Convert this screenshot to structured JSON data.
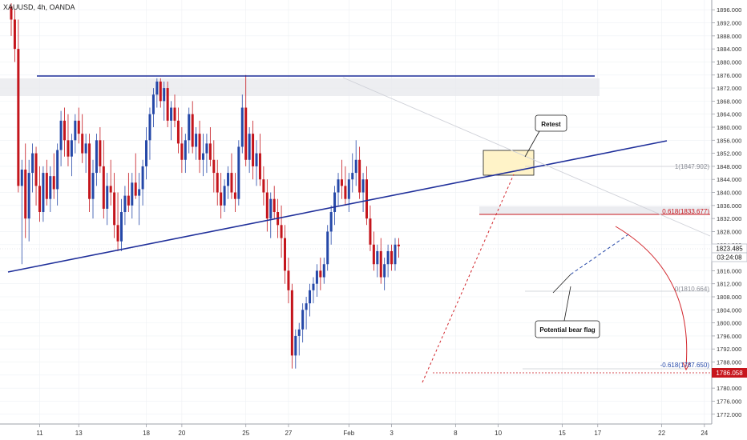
{
  "header": {
    "title": "XAUUSD, 4h, OANDA"
  },
  "colors": {
    "up": "#2548a8",
    "down": "#c4151c",
    "trend": "#1f2f9a",
    "grid": "#eef0f4"
  },
  "annotations": {
    "retest": "Retest",
    "bear_flag": "Potential bear flag",
    "fib_1": "1(1847.902)",
    "fib_0618": "0.618(1833.677)",
    "fib_0": "0(1810.664)",
    "fib_m0618": "-0.618(1787.650)"
  },
  "price_badges": {
    "last": "1823.485",
    "countdown": "03:24:08",
    "target": "1786.058"
  },
  "chart_data": {
    "type": "candlestick",
    "symbol": "XAUUSD",
    "timeframe": "4h",
    "source": "OANDA",
    "ylim": [
      1769,
      1899
    ],
    "y_ticks": [
      "1896.000",
      "1892.000",
      "1888.000",
      "1884.000",
      "1880.000",
      "1876.000",
      "1872.000",
      "1868.000",
      "1864.000",
      "1860.000",
      "1856.000",
      "1852.000",
      "1848.000",
      "1844.000",
      "1840.000",
      "1836.000",
      "1832.000",
      "1828.000",
      "1824.000",
      "1820.000",
      "1816.000",
      "1812.000",
      "1808.000",
      "1804.000",
      "1800.000",
      "1796.000",
      "1792.000",
      "1788.000",
      "1784.000",
      "1780.000",
      "1776.000",
      "1772.000"
    ],
    "x_ticks": [
      {
        "label": "11",
        "bar": 8
      },
      {
        "label": "13",
        "bar": 19
      },
      {
        "label": "18",
        "bar": 38
      },
      {
        "label": "20",
        "bar": 48
      },
      {
        "label": "25",
        "bar": 66
      },
      {
        "label": "27",
        "bar": 78
      },
      {
        "label": "Feb",
        "bar": 95
      },
      {
        "label": "3",
        "bar": 107
      },
      {
        "label": "8",
        "bar": 125
      },
      {
        "label": "10",
        "bar": 137
      },
      {
        "label": "15",
        "bar": 155
      },
      {
        "label": "17",
        "bar": 165
      },
      {
        "label": "22",
        "bar": 183
      },
      {
        "label": "24",
        "bar": 195
      }
    ],
    "ohlc": [
      [
        1897,
        1898,
        1888,
        1893
      ],
      [
        1893,
        1896,
        1880,
        1884
      ],
      [
        1884,
        1893,
        1840,
        1842
      ],
      [
        1842,
        1850,
        1818,
        1847
      ],
      [
        1847,
        1855,
        1826,
        1832
      ],
      [
        1832,
        1850,
        1825,
        1846
      ],
      [
        1846,
        1855,
        1840,
        1852
      ],
      [
        1852,
        1854,
        1836,
        1842
      ],
      [
        1842,
        1848,
        1831,
        1834
      ],
      [
        1834,
        1848,
        1831,
        1846
      ],
      [
        1846,
        1850,
        1836,
        1838
      ],
      [
        1838,
        1848,
        1834,
        1845
      ],
      [
        1845,
        1852,
        1838,
        1841
      ],
      [
        1841,
        1855,
        1836,
        1853
      ],
      [
        1853,
        1865,
        1848,
        1862
      ],
      [
        1862,
        1866,
        1851,
        1856
      ],
      [
        1856,
        1864,
        1848,
        1851
      ],
      [
        1851,
        1858,
        1845,
        1856
      ],
      [
        1856,
        1864,
        1852,
        1862
      ],
      [
        1862,
        1866,
        1855,
        1858
      ],
      [
        1858,
        1864,
        1849,
        1852
      ],
      [
        1852,
        1858,
        1846,
        1855
      ],
      [
        1855,
        1858,
        1834,
        1838
      ],
      [
        1838,
        1850,
        1832,
        1846
      ],
      [
        1846,
        1858,
        1842,
        1856
      ],
      [
        1856,
        1860,
        1846,
        1848
      ],
      [
        1848,
        1856,
        1832,
        1835
      ],
      [
        1835,
        1846,
        1830,
        1842
      ],
      [
        1842,
        1850,
        1836,
        1840
      ],
      [
        1840,
        1846,
        1826,
        1830
      ],
      [
        1830,
        1840,
        1822,
        1825
      ],
      [
        1825,
        1838,
        1822,
        1834
      ],
      [
        1834,
        1842,
        1830,
        1839
      ],
      [
        1839,
        1846,
        1834,
        1836
      ],
      [
        1836,
        1846,
        1832,
        1843
      ],
      [
        1843,
        1852,
        1838,
        1839
      ],
      [
        1839,
        1846,
        1830,
        1841
      ],
      [
        1841,
        1850,
        1836,
        1848
      ],
      [
        1848,
        1860,
        1844,
        1856
      ],
      [
        1856,
        1866,
        1850,
        1864
      ],
      [
        1864,
        1872,
        1860,
        1870
      ],
      [
        1870,
        1875,
        1866,
        1874
      ],
      [
        1874,
        1875,
        1866,
        1868
      ],
      [
        1868,
        1874,
        1862,
        1872
      ],
      [
        1872,
        1874,
        1860,
        1862
      ],
      [
        1862,
        1868,
        1856,
        1866
      ],
      [
        1866,
        1870,
        1860,
        1862
      ],
      [
        1862,
        1866,
        1852,
        1855
      ],
      [
        1855,
        1860,
        1846,
        1850
      ],
      [
        1850,
        1858,
        1846,
        1856
      ],
      [
        1856,
        1866,
        1852,
        1864
      ],
      [
        1864,
        1868,
        1852,
        1854
      ],
      [
        1854,
        1860,
        1850,
        1858
      ],
      [
        1858,
        1862,
        1846,
        1850
      ],
      [
        1850,
        1858,
        1845,
        1852
      ],
      [
        1852,
        1858,
        1846,
        1855
      ],
      [
        1855,
        1860,
        1848,
        1850
      ],
      [
        1850,
        1856,
        1840,
        1846
      ],
      [
        1846,
        1850,
        1836,
        1840
      ],
      [
        1840,
        1846,
        1832,
        1836
      ],
      [
        1836,
        1844,
        1834,
        1842
      ],
      [
        1842,
        1848,
        1838,
        1846
      ],
      [
        1846,
        1852,
        1838,
        1840
      ],
      [
        1840,
        1846,
        1834,
        1838
      ],
      [
        1838,
        1856,
        1836,
        1854
      ],
      [
        1854,
        1870,
        1852,
        1866
      ],
      [
        1866,
        1876,
        1848,
        1850
      ],
      [
        1850,
        1860,
        1846,
        1858
      ],
      [
        1858,
        1862,
        1844,
        1848
      ],
      [
        1848,
        1856,
        1842,
        1852
      ],
      [
        1852,
        1858,
        1842,
        1844
      ],
      [
        1844,
        1848,
        1836,
        1840
      ],
      [
        1840,
        1844,
        1828,
        1832
      ],
      [
        1832,
        1840,
        1826,
        1838
      ],
      [
        1838,
        1842,
        1832,
        1834
      ],
      [
        1834,
        1838,
        1826,
        1830
      ],
      [
        1830,
        1836,
        1820,
        1826
      ],
      [
        1826,
        1830,
        1812,
        1816
      ],
      [
        1816,
        1820,
        1806,
        1810
      ],
      [
        1810,
        1812,
        1786,
        1790
      ],
      [
        1790,
        1798,
        1786,
        1796
      ],
      [
        1796,
        1800,
        1790,
        1798
      ],
      [
        1798,
        1806,
        1794,
        1804
      ],
      [
        1804,
        1808,
        1798,
        1806
      ],
      [
        1806,
        1812,
        1802,
        1810
      ],
      [
        1810,
        1814,
        1806,
        1812
      ],
      [
        1812,
        1818,
        1808,
        1816
      ],
      [
        1816,
        1820,
        1810,
        1814
      ],
      [
        1814,
        1820,
        1812,
        1818
      ],
      [
        1818,
        1830,
        1816,
        1828
      ],
      [
        1828,
        1836,
        1824,
        1834
      ],
      [
        1834,
        1842,
        1830,
        1840
      ],
      [
        1840,
        1846,
        1836,
        1844
      ],
      [
        1844,
        1850,
        1838,
        1842
      ],
      [
        1842,
        1848,
        1836,
        1838
      ],
      [
        1838,
        1846,
        1834,
        1844
      ],
      [
        1844,
        1852,
        1840,
        1846
      ],
      [
        1846,
        1856,
        1842,
        1850
      ],
      [
        1850,
        1854,
        1838,
        1840
      ],
      [
        1840,
        1846,
        1834,
        1844
      ],
      [
        1844,
        1848,
        1830,
        1832
      ],
      [
        1832,
        1836,
        1822,
        1824
      ],
      [
        1824,
        1828,
        1816,
        1818
      ],
      [
        1818,
        1824,
        1814,
        1822
      ],
      [
        1822,
        1826,
        1812,
        1814
      ],
      [
        1814,
        1820,
        1810,
        1818
      ],
      [
        1818,
        1824,
        1814,
        1822
      ],
      [
        1822,
        1824,
        1816,
        1818
      ],
      [
        1818,
        1826,
        1816,
        1824
      ],
      [
        1824,
        1826,
        1820,
        1823.485
      ]
    ]
  }
}
